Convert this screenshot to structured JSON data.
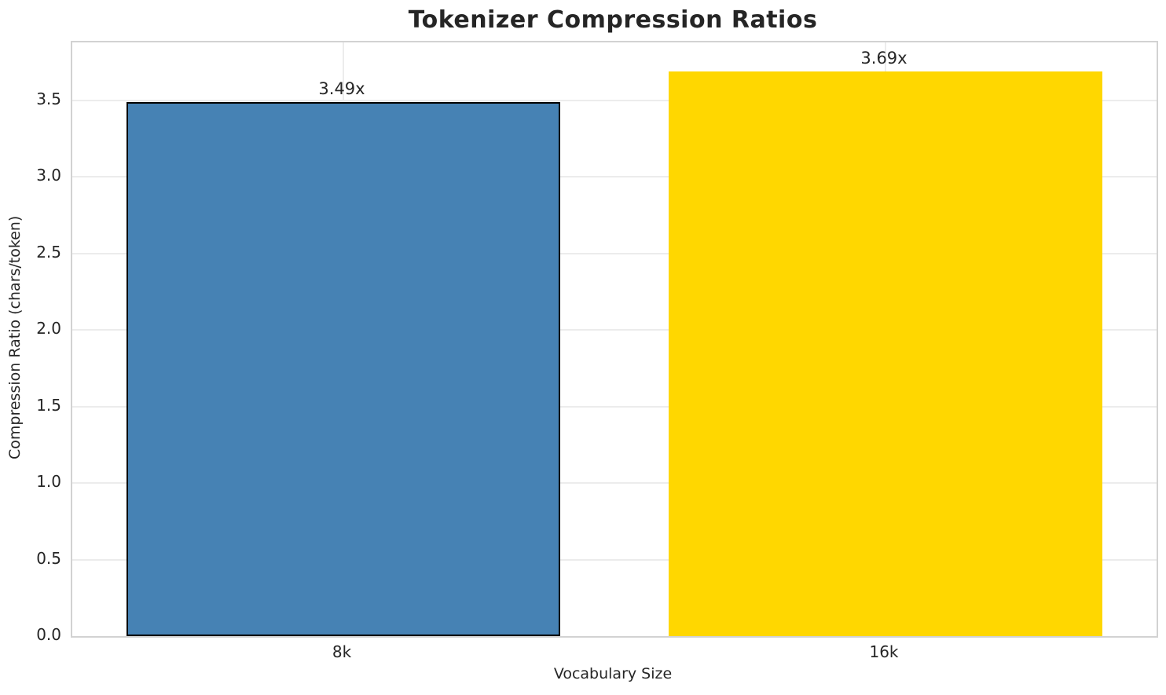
{
  "chart_data": {
    "type": "bar",
    "title": "Tokenizer Compression Ratios",
    "xlabel": "Vocabulary Size",
    "ylabel": "Compression Ratio (chars/token)",
    "categories": [
      "8k",
      "16k"
    ],
    "values": [
      3.49,
      3.69
    ],
    "bar_labels": [
      "3.49x",
      "3.69x"
    ],
    "bar_colors": [
      "#4682B4",
      "#FFD700"
    ],
    "bar_edge_colors": [
      "#000000",
      "none"
    ],
    "ylim": [
      0,
      3.88
    ],
    "yticks": [
      0.0,
      0.5,
      1.0,
      1.5,
      2.0,
      2.5,
      3.0,
      3.5
    ],
    "ytick_labels": [
      "0.0",
      "0.5",
      "1.0",
      "1.5",
      "2.0",
      "2.5",
      "3.0",
      "3.5"
    ],
    "grid": true,
    "grid_axis": "both",
    "legend": "none",
    "colors": {
      "grid": "#ececec",
      "spine": "#d2d2d2",
      "text": "#262626",
      "background": "#ffffff"
    }
  }
}
